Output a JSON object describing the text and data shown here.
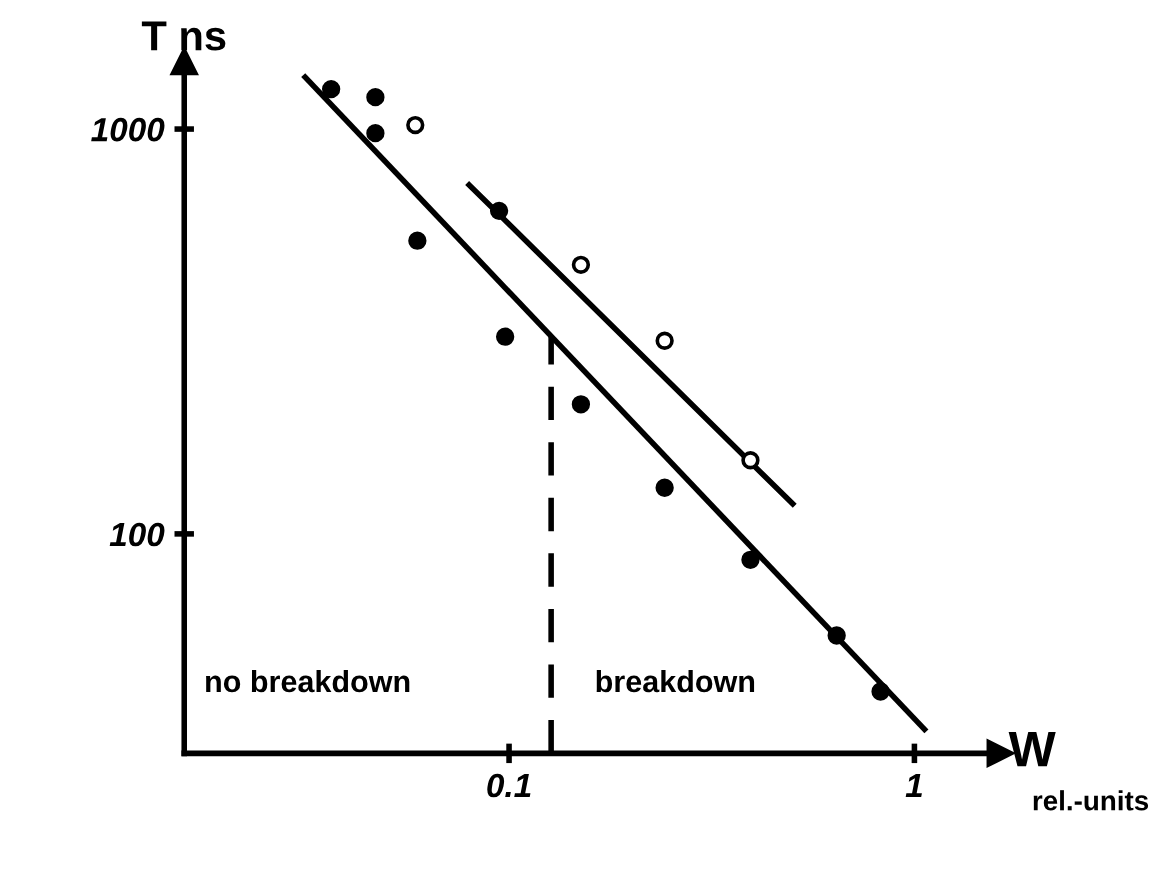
{
  "chart_data": {
    "type": "scatter",
    "xlabel": "W",
    "ylabel": "T ns",
    "log": "xy",
    "xlim": [
      0.0158,
      1.63
    ],
    "ylim": [
      28.7,
      1470
    ],
    "xticks": [
      0.1,
      1
    ],
    "yticks": [
      100,
      1000
    ],
    "grid": false,
    "series": [
      {
        "marker": "circle",
        "color": "#000000",
        "x": [
          0.0364,
          0.0468,
          0.0468,
          0.0594,
          0.0945,
          0.0978,
          0.1504,
          0.242,
          0.394,
          0.643,
          0.825
        ],
        "values": [
          1255,
          1199,
          977,
          530,
          628,
          307,
          209,
          130,
          86.3,
          56.1,
          40.8
        ]
      },
      {
        "marker": "circle",
        "color": "#ffffff",
        "x": [
          0.0587,
          0.1504,
          0.242,
          0.394
        ],
        "values": [
          1023,
          462,
          300,
          152
        ]
      },
      {
        "type": "line",
        "color": "#000000",
        "x": [
          0.0314,
          1.059
        ],
        "values": [
          1343,
          32.9
        ]
      },
      {
        "type": "line",
        "color": "#000000",
        "x": [
          0.0797,
          0.501
        ],
        "values": [
          728,
          118.6
        ]
      }
    ],
    "ref_lines": [
      {
        "axis": "x",
        "value": 0.127,
        "color": "#000000",
        "line_style": "dashed"
      }
    ],
    "annotations": [
      "no breakdown",
      "breakdown",
      "rel.-units"
    ]
  }
}
